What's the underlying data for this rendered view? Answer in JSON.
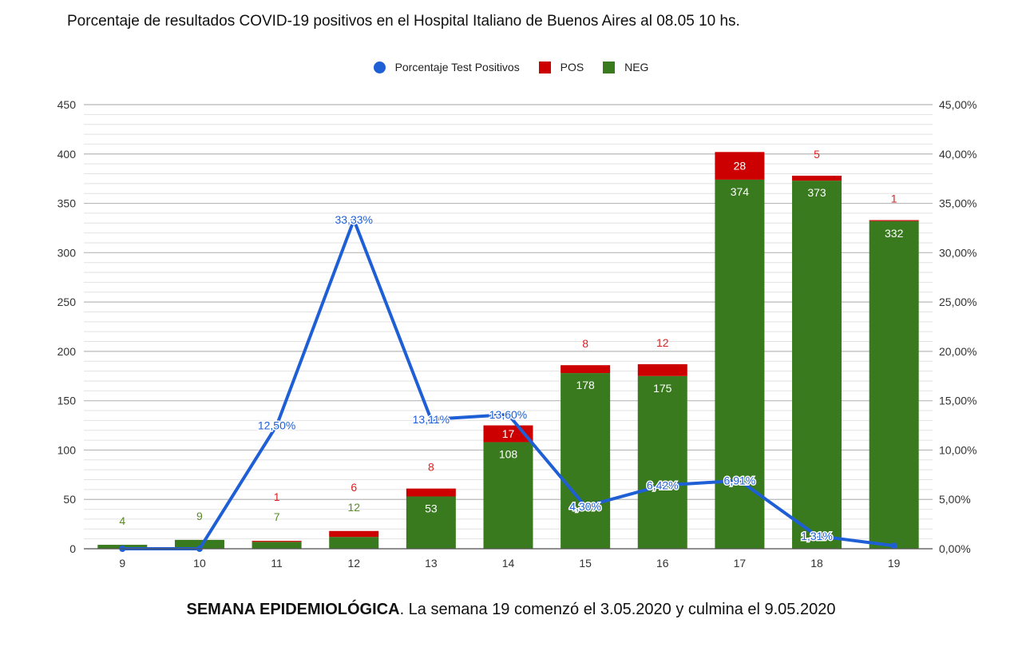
{
  "header": {
    "title": "Porcentaje de resultados COVID-19 positivos en el Hospital Italiano de Buenos Aires al 08.05 10 hs."
  },
  "footer": {
    "bold": "SEMANA EPIDEMIOLÓGICA",
    "rest": ". La semana 19 comenzó el 3.05.2020 y culmina el 9.05.2020"
  },
  "colors": {
    "pos": "#cc0000",
    "neg": "#3a7a1f",
    "line": "#1f5fd6"
  },
  "chart_data": {
    "type": "bar",
    "stacked": true,
    "categories": [
      "9",
      "10",
      "11",
      "12",
      "13",
      "14",
      "15",
      "16",
      "17",
      "18",
      "19"
    ],
    "series": [
      {
        "name": "NEG",
        "values": [
          4,
          9,
          7,
          12,
          53,
          108,
          178,
          175,
          374,
          373,
          332
        ]
      },
      {
        "name": "POS",
        "values": [
          0,
          0,
          1,
          6,
          8,
          17,
          8,
          12,
          28,
          5,
          1
        ]
      }
    ],
    "line_series": {
      "name": "Porcentaje Test Positivos",
      "values": [
        0,
        0,
        12.5,
        33.33,
        13.11,
        13.6,
        4.3,
        6.42,
        6.91,
        1.31,
        0.3
      ],
      "labels": [
        "",
        "",
        "12,50%",
        "33,33%",
        "13,11%",
        "13,60%",
        "4,30%",
        "6,42%",
        "6,91%",
        "1,31%",
        ""
      ]
    },
    "neg_labels": [
      "4",
      "9",
      "7",
      "12",
      "53",
      "108",
      "178",
      "175",
      "374",
      "373",
      "332"
    ],
    "pos_labels": [
      "",
      "",
      "1",
      "6",
      "8",
      "17",
      "8",
      "12",
      "28",
      "5",
      "1"
    ],
    "y_left": {
      "min": 0,
      "max": 450,
      "ticks": [
        "0",
        "50",
        "100",
        "150",
        "200",
        "250",
        "300",
        "350",
        "400",
        "450"
      ]
    },
    "y_right": {
      "min": 0,
      "max": 45,
      "ticks": [
        "0,00%",
        "5,00%",
        "10,00%",
        "15,00%",
        "20,00%",
        "25,00%",
        "30,00%",
        "35,00%",
        "40,00%",
        "45,00%"
      ]
    },
    "legend": [
      "Porcentaje Test Positivos",
      "POS",
      "NEG"
    ],
    "legend_position": "top",
    "grid": true
  }
}
